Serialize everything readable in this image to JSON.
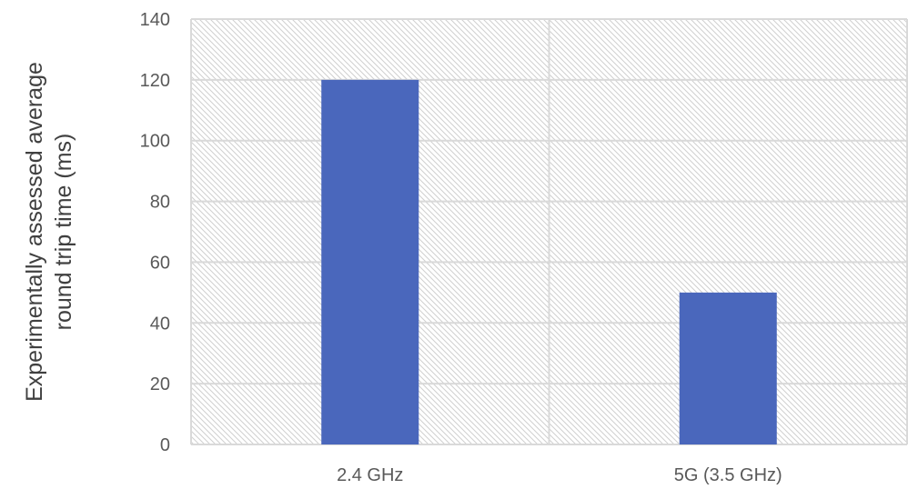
{
  "chart_data": {
    "type": "bar",
    "title": "",
    "xlabel": "",
    "ylabel_lines": [
      "Experimentally assessed average",
      "round trip time (ms)"
    ],
    "categories": [
      "2.4 GHz",
      "5G (3.5 GHz)"
    ],
    "values": [
      120,
      50
    ],
    "ylim": [
      0,
      140
    ],
    "yticks": [
      0,
      20,
      40,
      60,
      80,
      100,
      120,
      140
    ],
    "grid": true,
    "legend": "none",
    "plot_background": "hatched",
    "colors": {
      "bar": "#4A67BC",
      "grid": "#d9d9d9",
      "hatch": "#cfcfcf",
      "tick_text": "#595959",
      "axis_title": "#404040"
    }
  }
}
